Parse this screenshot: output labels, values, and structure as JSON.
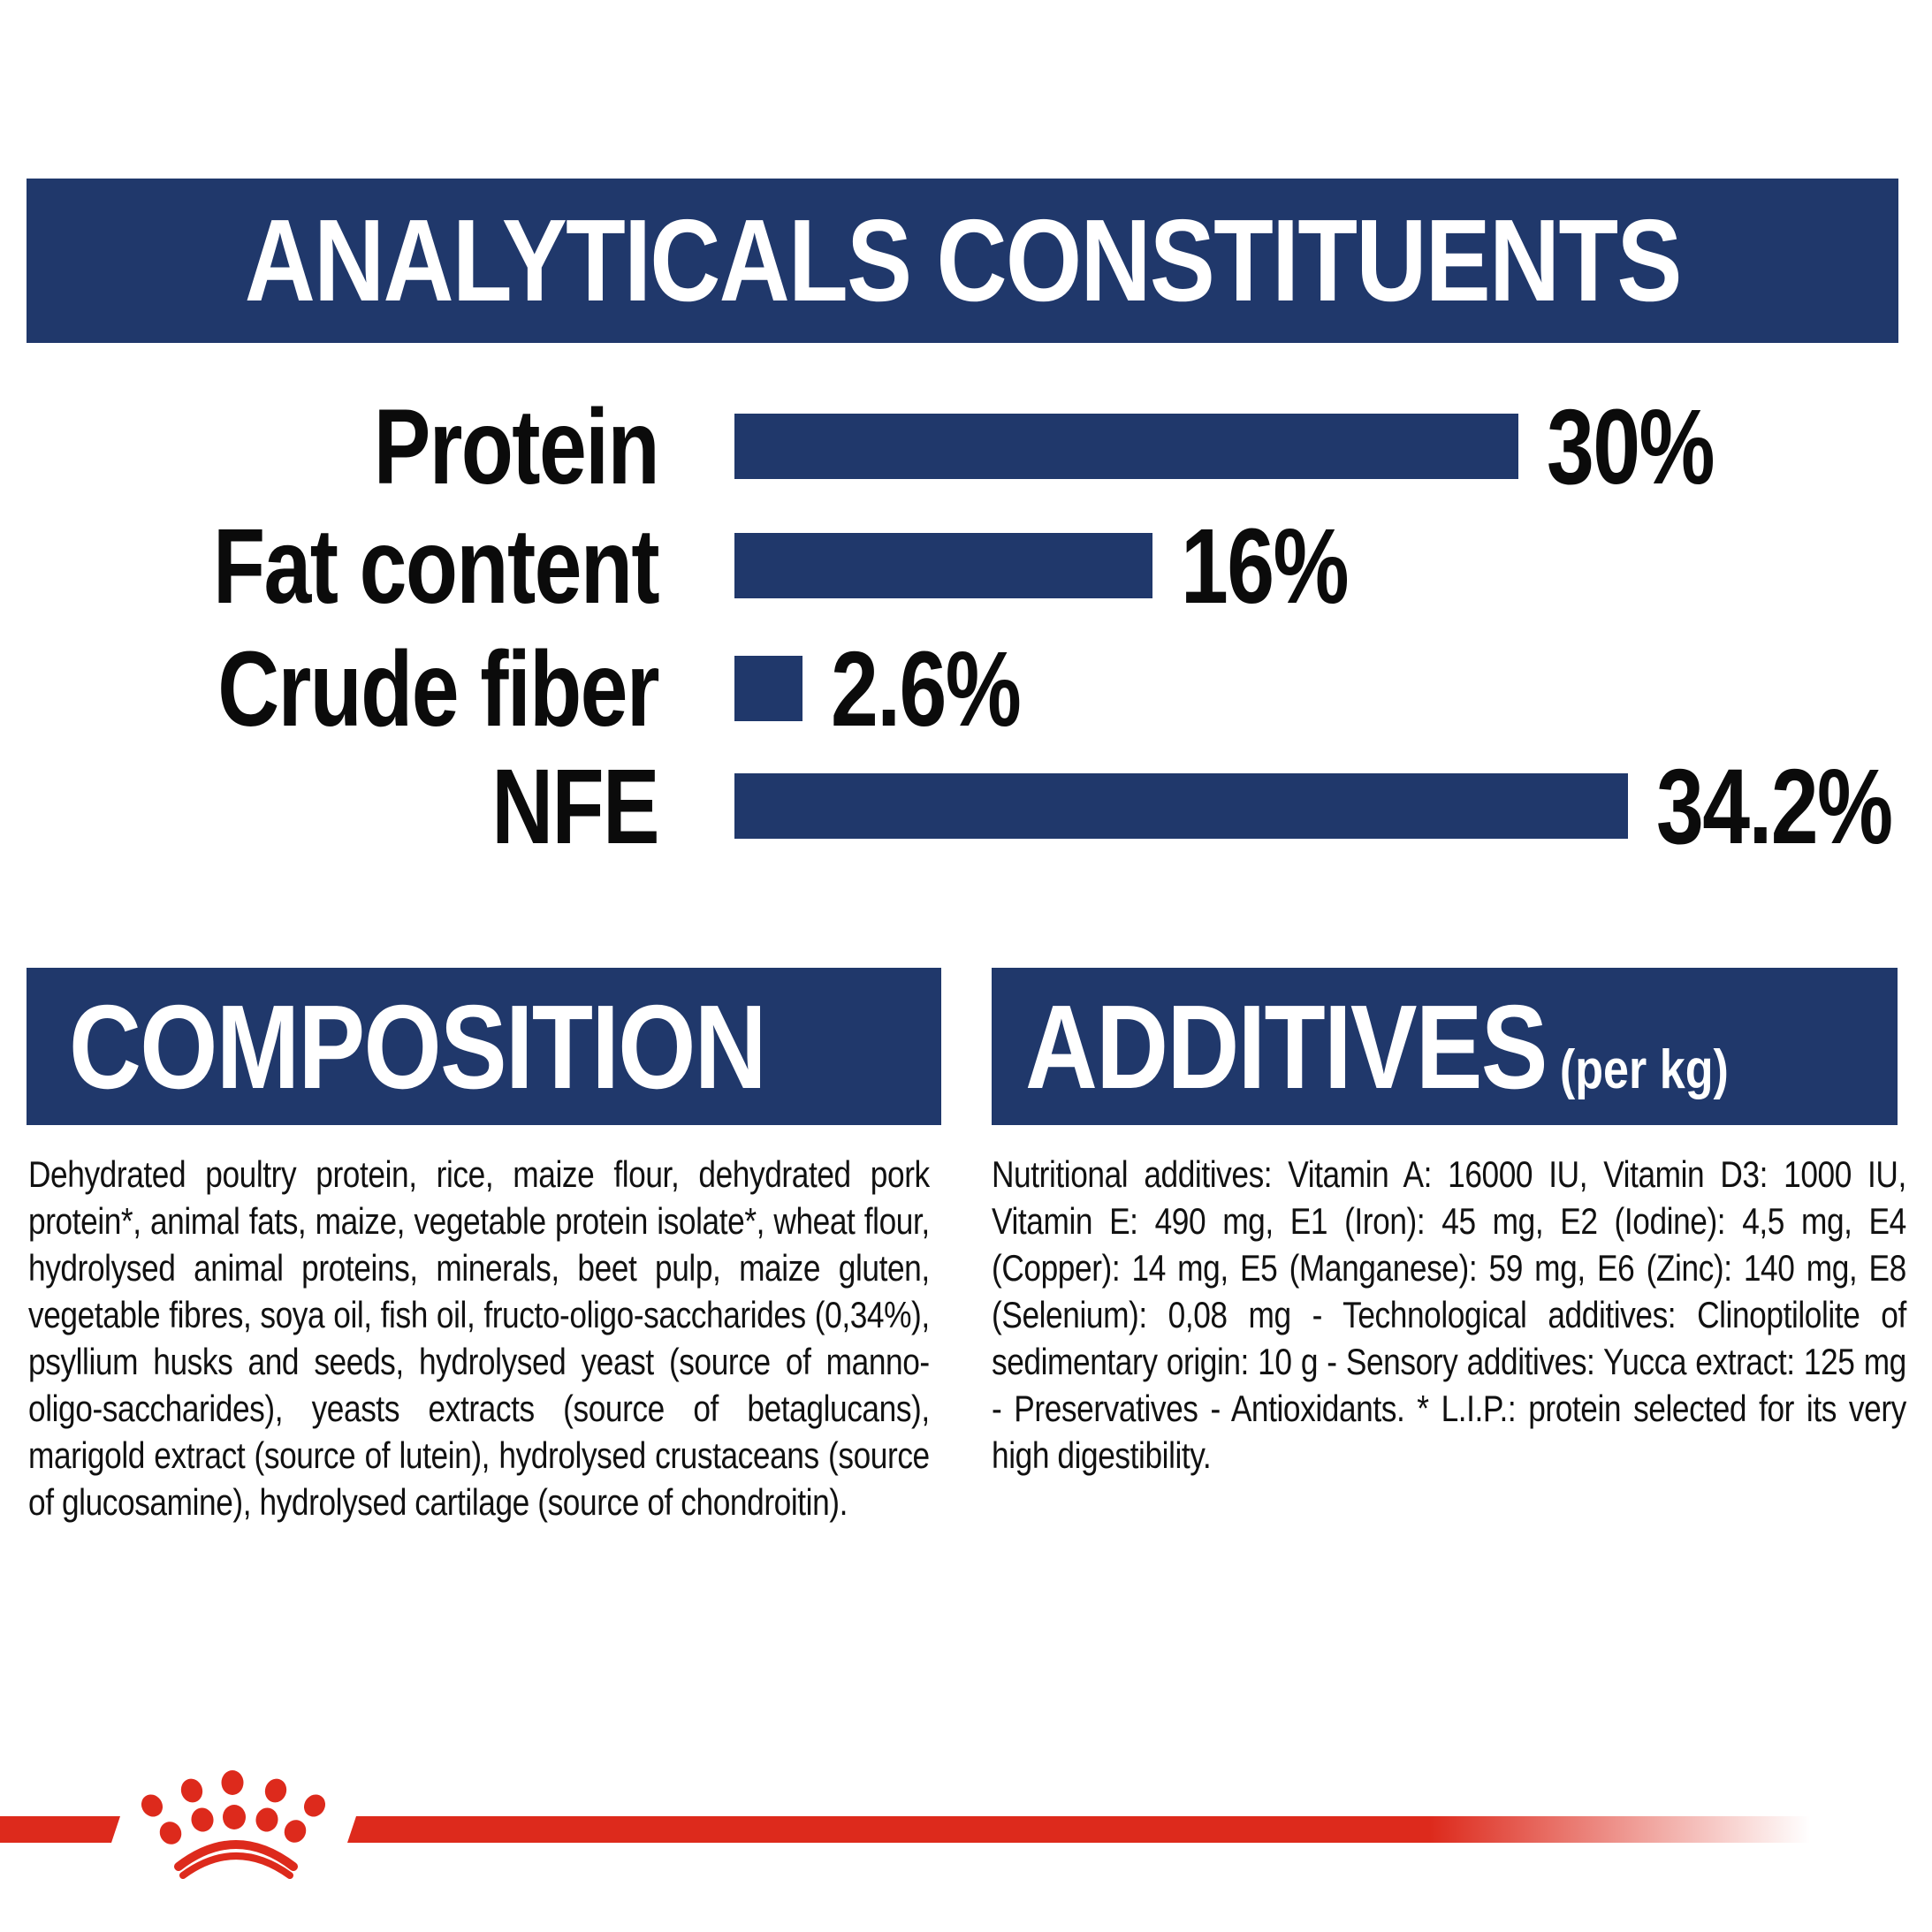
{
  "colors": {
    "navy": "#20386b",
    "red": "#dd2a1c",
    "text": "#111111"
  },
  "analyticals": {
    "title": "ANALYTICALS CONSTITUENTS"
  },
  "chart_data": {
    "type": "bar",
    "orientation": "horizontal",
    "title": "ANALYTICALS CONSTITUENTS",
    "categories": [
      "Protein",
      "Fat content",
      "Crude fiber",
      "NFE"
    ],
    "values": [
      30,
      16,
      2.6,
      34.2
    ],
    "value_labels": [
      "30%",
      "16%",
      "2.6%",
      "34.2%"
    ],
    "unit": "%",
    "xlim": [
      0,
      34.2
    ],
    "bar_color": "#20386b",
    "grid": false,
    "value_label_position": "end-of-bar"
  },
  "composition": {
    "title": "COMPOSITION",
    "body": "Dehydrated poultry protein, rice, maize flour, dehydrated pork protein*, animal fats, maize, vegetable protein isolate*, wheat flour, hydrolysed animal proteins, minerals, beet pulp, maize gluten, vegetable fibres, soya oil, fish oil, fructo-oligo-saccharides (0,34%), psyllium husks and seeds, hydrolysed yeast (source of manno-oligo-saccharides), yeasts extracts (source of betaglucans), marigold extract (source of lutein), hydrolysed crustaceans (source of glucosamine), hydrolysed cartilage (source of chondroitin)."
  },
  "additives": {
    "title": "ADDITIVES",
    "subtitle": "(per kg)",
    "body": "Nutritional additives: Vitamin A: 16000 IU, Vitamin D3: 1000 IU, Vitamin E: 490 mg, E1 (Iron): 45 mg, E2 (Iodine): 4,5 mg, E4 (Copper): 14 mg, E5 (Manganese): 59 mg, E6 (Zinc): 140 mg, E8 (Selenium): 0,08 mg - Technological additives: Clinoptilolite of sedimentary origin: 10 g - Sensory additives: Yucca extract: 125 mg - Preservatives - Antioxidants. * L.I.P.: protein selected for its very high digestibility."
  },
  "footer": {
    "logo": "royal-canin-crown-paw-logo"
  }
}
